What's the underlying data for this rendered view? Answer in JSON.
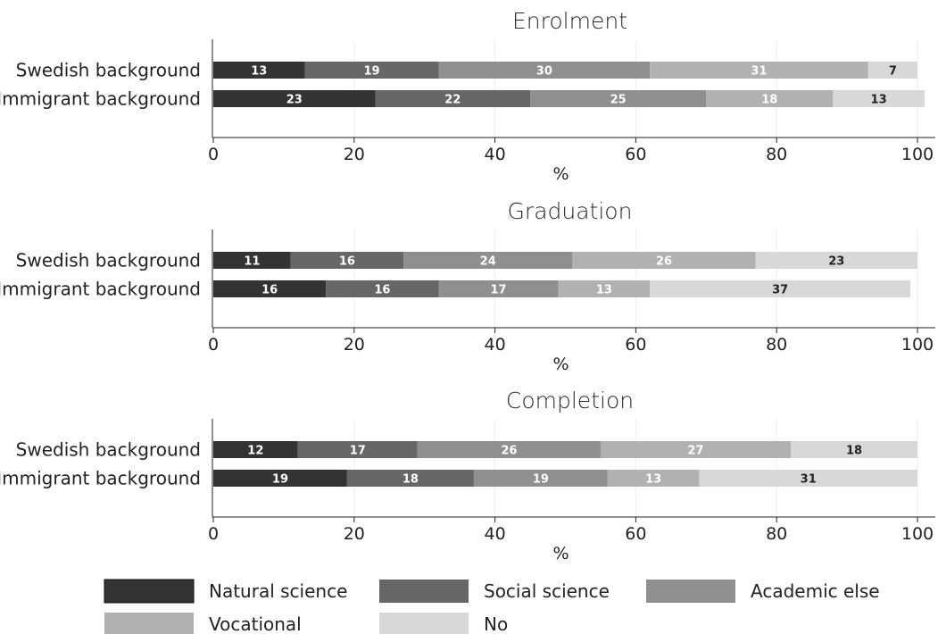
{
  "chart_data": [
    {
      "type": "bar",
      "orientation": "horizontal",
      "stacked": true,
      "title": "Enrolment",
      "xlabel": "%",
      "xlim": [
        0,
        100
      ],
      "xticks": [
        0,
        20,
        40,
        60,
        80,
        100
      ],
      "categories": [
        "Swedish background",
        "Immigrant background"
      ],
      "series": [
        {
          "name": "Natural science",
          "values": [
            13,
            23
          ]
        },
        {
          "name": "Social science",
          "values": [
            19,
            22
          ]
        },
        {
          "name": "Academic else",
          "values": [
            30,
            25
          ]
        },
        {
          "name": "Vocational",
          "values": [
            31,
            18
          ]
        },
        {
          "name": "No",
          "values": [
            7,
            13
          ]
        }
      ],
      "grid": true
    },
    {
      "type": "bar",
      "orientation": "horizontal",
      "stacked": true,
      "title": "Graduation",
      "xlabel": "%",
      "xlim": [
        0,
        100
      ],
      "xticks": [
        0,
        20,
        40,
        60,
        80,
        100
      ],
      "categories": [
        "Swedish background",
        "Immigrant background"
      ],
      "series": [
        {
          "name": "Natural science",
          "values": [
            11,
            16
          ]
        },
        {
          "name": "Social science",
          "values": [
            16,
            16
          ]
        },
        {
          "name": "Academic else",
          "values": [
            24,
            17
          ]
        },
        {
          "name": "Vocational",
          "values": [
            26,
            13
          ]
        },
        {
          "name": "No",
          "values": [
            23,
            37
          ]
        }
      ],
      "grid": true
    },
    {
      "type": "bar",
      "orientation": "horizontal",
      "stacked": true,
      "title": "Completion",
      "xlabel": "%",
      "xlim": [
        0,
        100
      ],
      "xticks": [
        0,
        20,
        40,
        60,
        80,
        100
      ],
      "categories": [
        "Swedish background",
        "Immigrant background"
      ],
      "series": [
        {
          "name": "Natural science",
          "values": [
            12,
            19
          ]
        },
        {
          "name": "Social science",
          "values": [
            17,
            18
          ]
        },
        {
          "name": "Academic else",
          "values": [
            26,
            19
          ]
        },
        {
          "name": "Vocational",
          "values": [
            27,
            13
          ]
        },
        {
          "name": "No",
          "values": [
            18,
            31
          ]
        }
      ],
      "grid": true
    }
  ],
  "legend": {
    "placement": "bottom",
    "items": [
      {
        "name": "Natural science",
        "color": "#333333"
      },
      {
        "name": "Social science",
        "color": "#666666"
      },
      {
        "name": "Academic else",
        "color": "#8f8f8f"
      },
      {
        "name": "Vocational",
        "color": "#b1b1b1"
      },
      {
        "name": "No",
        "color": "#d8d8d8"
      }
    ]
  },
  "label_colors": {
    "light": "#ffffff",
    "dark": "#222222"
  }
}
